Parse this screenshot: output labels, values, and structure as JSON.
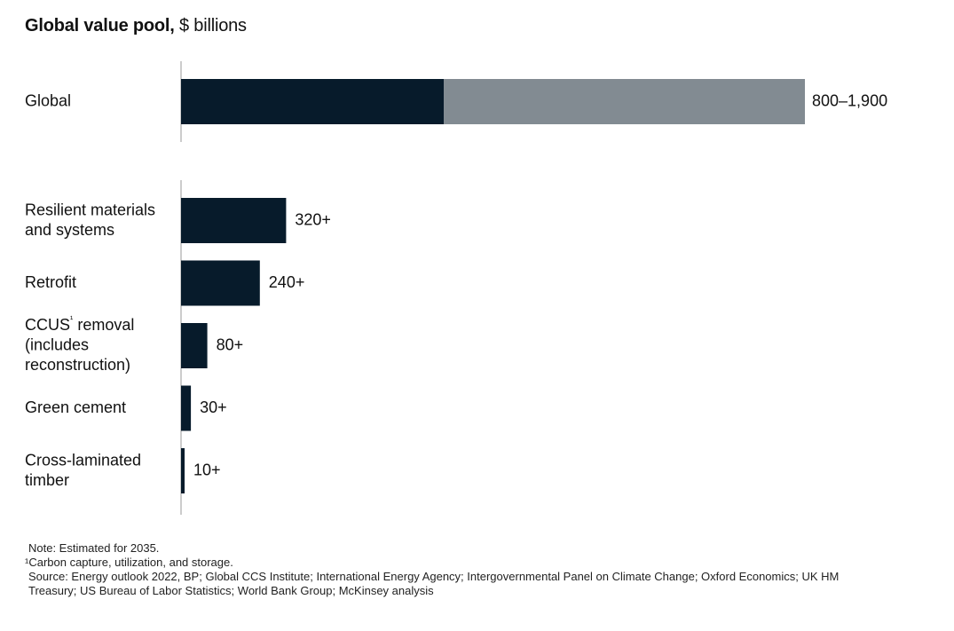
{
  "title": {
    "bold": "Global value pool,",
    "light": "$ billions"
  },
  "colors": {
    "dark": "#071b2b",
    "gray": "#828b92",
    "axis": "#9a9a9a",
    "text": "#111111"
  },
  "chart_data": {
    "type": "bar",
    "orientation": "horizontal",
    "title": "Global value pool, $ billions",
    "unit": "$ billions",
    "groups": [
      {
        "name": "global",
        "bars": [
          {
            "label_lines": [
              "Global"
            ],
            "value": 800,
            "range_high": 1900,
            "value_label": "800–1,900"
          }
        ]
      },
      {
        "name": "segments",
        "bars": [
          {
            "label_lines": [
              "Resilient materials",
              "and systems"
            ],
            "value": 320,
            "value_label": "320+"
          },
          {
            "label_lines": [
              "Retrofit"
            ],
            "value": 240,
            "value_label": "240+"
          },
          {
            "label_lines": [
              "CCUS¹ removal",
              "(includes",
              "reconstruction)"
            ],
            "value": 80,
            "value_label": "80+"
          },
          {
            "label_lines": [
              "Green cement"
            ],
            "value": 30,
            "value_label": "30+"
          },
          {
            "label_lines": [
              "Cross-laminated",
              "timber"
            ],
            "value": 10,
            "value_label": "10+"
          }
        ]
      }
    ],
    "xlim": [
      0,
      1900
    ],
    "grid": false,
    "legend": "none"
  },
  "notes": {
    "note": "Note: Estimated for 2035.",
    "footnote": "¹Carbon capture, utilization, and storage.",
    "source_line1": "Source: Energy outlook 2022, BP; Global CCS Institute; International Energy Agency; Intergovernmental Panel on Climate Change; Oxford Economics; UK HM",
    "source_line2": "Treasury; US Bureau of Labor Statistics; World Bank Group; McKinsey analysis"
  }
}
